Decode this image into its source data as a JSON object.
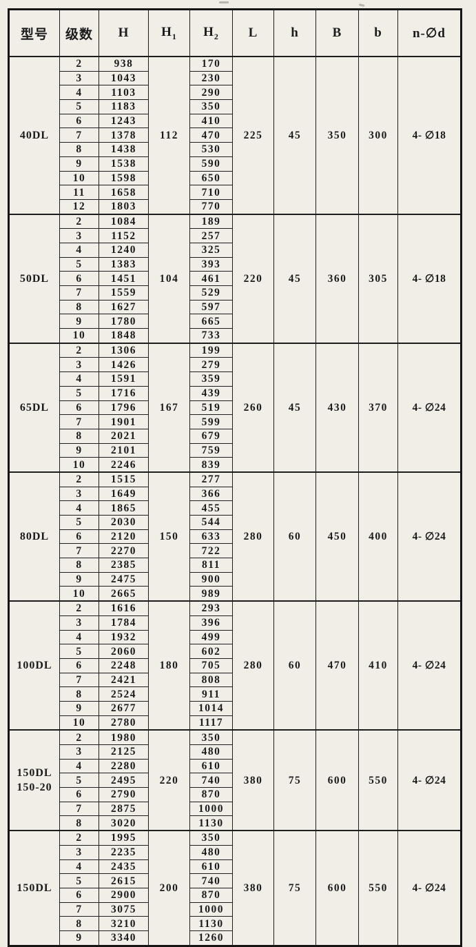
{
  "colors": {
    "paper": "#f0ede7",
    "ink": "#1b1b1b",
    "grid_line": "#1c1c1c"
  },
  "table": {
    "columns": [
      {
        "key": "model",
        "label": "型号",
        "sub": ""
      },
      {
        "key": "stages",
        "label": "级数",
        "sub": ""
      },
      {
        "key": "H",
        "label": "H",
        "sub": ""
      },
      {
        "key": "H1",
        "label": "H",
        "sub": "1"
      },
      {
        "key": "H2",
        "label": "H",
        "sub": "2"
      },
      {
        "key": "L",
        "label": "L",
        "sub": ""
      },
      {
        "key": "h",
        "label": "h",
        "sub": ""
      },
      {
        "key": "B",
        "label": "B",
        "sub": ""
      },
      {
        "key": "b",
        "label": "b",
        "sub": ""
      },
      {
        "key": "nd",
        "label": "n-∅d",
        "sub": ""
      }
    ],
    "groups": [
      {
        "model": "40DL",
        "model2": "",
        "H1": "112",
        "L": "225",
        "h": "45",
        "B": "350",
        "b": "300",
        "nd": "4- ∅18",
        "rows": [
          {
            "stages": "2",
            "H": "938",
            "H2": "170"
          },
          {
            "stages": "3",
            "H": "1043",
            "H2": "230"
          },
          {
            "stages": "4",
            "H": "1103",
            "H2": "290"
          },
          {
            "stages": "5",
            "H": "1183",
            "H2": "350"
          },
          {
            "stages": "6",
            "H": "1243",
            "H2": "410"
          },
          {
            "stages": "7",
            "H": "1378",
            "H2": "470"
          },
          {
            "stages": "8",
            "H": "1438",
            "H2": "530"
          },
          {
            "stages": "9",
            "H": "1538",
            "H2": "590"
          },
          {
            "stages": "10",
            "H": "1598",
            "H2": "650"
          },
          {
            "stages": "11",
            "H": "1658",
            "H2": "710"
          },
          {
            "stages": "12",
            "H": "1803",
            "H2": "770"
          }
        ]
      },
      {
        "model": "50DL",
        "model2": "",
        "H1": "104",
        "L": "220",
        "h": "45",
        "B": "360",
        "b": "305",
        "nd": "4- ∅18",
        "rows": [
          {
            "stages": "2",
            "H": "1084",
            "H2": "189"
          },
          {
            "stages": "3",
            "H": "1152",
            "H2": "257"
          },
          {
            "stages": "4",
            "H": "1240",
            "H2": "325"
          },
          {
            "stages": "5",
            "H": "1383",
            "H2": "393"
          },
          {
            "stages": "6",
            "H": "1451",
            "H2": "461"
          },
          {
            "stages": "7",
            "H": "1559",
            "H2": "529"
          },
          {
            "stages": "8",
            "H": "1627",
            "H2": "597"
          },
          {
            "stages": "9",
            "H": "1780",
            "H2": "665"
          },
          {
            "stages": "10",
            "H": "1848",
            "H2": "733"
          }
        ]
      },
      {
        "model": "65DL",
        "model2": "",
        "H1": "167",
        "L": "260",
        "h": "45",
        "B": "430",
        "b": "370",
        "nd": "4- ∅24",
        "rows": [
          {
            "stages": "2",
            "H": "1306",
            "H2": "199"
          },
          {
            "stages": "3",
            "H": "1426",
            "H2": "279"
          },
          {
            "stages": "4",
            "H": "1591",
            "H2": "359"
          },
          {
            "stages": "5",
            "H": "1716",
            "H2": "439"
          },
          {
            "stages": "6",
            "H": "1796",
            "H2": "519"
          },
          {
            "stages": "7",
            "H": "1901",
            "H2": "599"
          },
          {
            "stages": "8",
            "H": "2021",
            "H2": "679"
          },
          {
            "stages": "9",
            "H": "2101",
            "H2": "759"
          },
          {
            "stages": "10",
            "H": "2246",
            "H2": "839"
          }
        ]
      },
      {
        "model": "80DL",
        "model2": "",
        "H1": "150",
        "L": "280",
        "h": "60",
        "B": "450",
        "b": "400",
        "nd": "4- ∅24",
        "rows": [
          {
            "stages": "2",
            "H": "1515",
            "H2": "277"
          },
          {
            "stages": "3",
            "H": "1649",
            "H2": "366"
          },
          {
            "stages": "4",
            "H": "1865",
            "H2": "455"
          },
          {
            "stages": "5",
            "H": "2030",
            "H2": "544"
          },
          {
            "stages": "6",
            "H": "2120",
            "H2": "633"
          },
          {
            "stages": "7",
            "H": "2270",
            "H2": "722"
          },
          {
            "stages": "8",
            "H": "2385",
            "H2": "811"
          },
          {
            "stages": "9",
            "H": "2475",
            "H2": "900"
          },
          {
            "stages": "10",
            "H": "2665",
            "H2": "989"
          }
        ]
      },
      {
        "model": "100DL",
        "model2": "",
        "H1": "180",
        "L": "280",
        "h": "60",
        "B": "470",
        "b": "410",
        "nd": "4- ∅24",
        "rows": [
          {
            "stages": "2",
            "H": "1616",
            "H2": "293"
          },
          {
            "stages": "3",
            "H": "1784",
            "H2": "396"
          },
          {
            "stages": "4",
            "H": "1932",
            "H2": "499"
          },
          {
            "stages": "5",
            "H": "2060",
            "H2": "602"
          },
          {
            "stages": "6",
            "H": "2248",
            "H2": "705"
          },
          {
            "stages": "7",
            "H": "2421",
            "H2": "808"
          },
          {
            "stages": "8",
            "H": "2524",
            "H2": "911"
          },
          {
            "stages": "9",
            "H": "2677",
            "H2": "1014"
          },
          {
            "stages": "10",
            "H": "2780",
            "H2": "1117"
          }
        ]
      },
      {
        "model": "150DL",
        "model2": "150-20",
        "H1": "220",
        "L": "380",
        "h": "75",
        "B": "600",
        "b": "550",
        "nd": "4- ∅24",
        "rows": [
          {
            "stages": "2",
            "H": "1980",
            "H2": "350"
          },
          {
            "stages": "3",
            "H": "2125",
            "H2": "480"
          },
          {
            "stages": "4",
            "H": "2280",
            "H2": "610"
          },
          {
            "stages": "5",
            "H": "2495",
            "H2": "740"
          },
          {
            "stages": "6",
            "H": "2790",
            "H2": "870"
          },
          {
            "stages": "7",
            "H": "2875",
            "H2": "1000"
          },
          {
            "stages": "8",
            "H": "3020",
            "H2": "1130"
          }
        ]
      },
      {
        "model": "150DL",
        "model2": "",
        "H1": "200",
        "L": "380",
        "h": "75",
        "B": "600",
        "b": "550",
        "nd": "4- ∅24",
        "rows": [
          {
            "stages": "2",
            "H": "1995",
            "H2": "350"
          },
          {
            "stages": "3",
            "H": "2235",
            "H2": "480"
          },
          {
            "stages": "4",
            "H": "2435",
            "H2": "610"
          },
          {
            "stages": "5",
            "H": "2615",
            "H2": "740"
          },
          {
            "stages": "6",
            "H": "2900",
            "H2": "870"
          },
          {
            "stages": "7",
            "H": "3075",
            "H2": "1000"
          },
          {
            "stages": "8",
            "H": "3210",
            "H2": "1130"
          },
          {
            "stages": "9",
            "H": "3340",
            "H2": "1260"
          }
        ]
      }
    ]
  }
}
